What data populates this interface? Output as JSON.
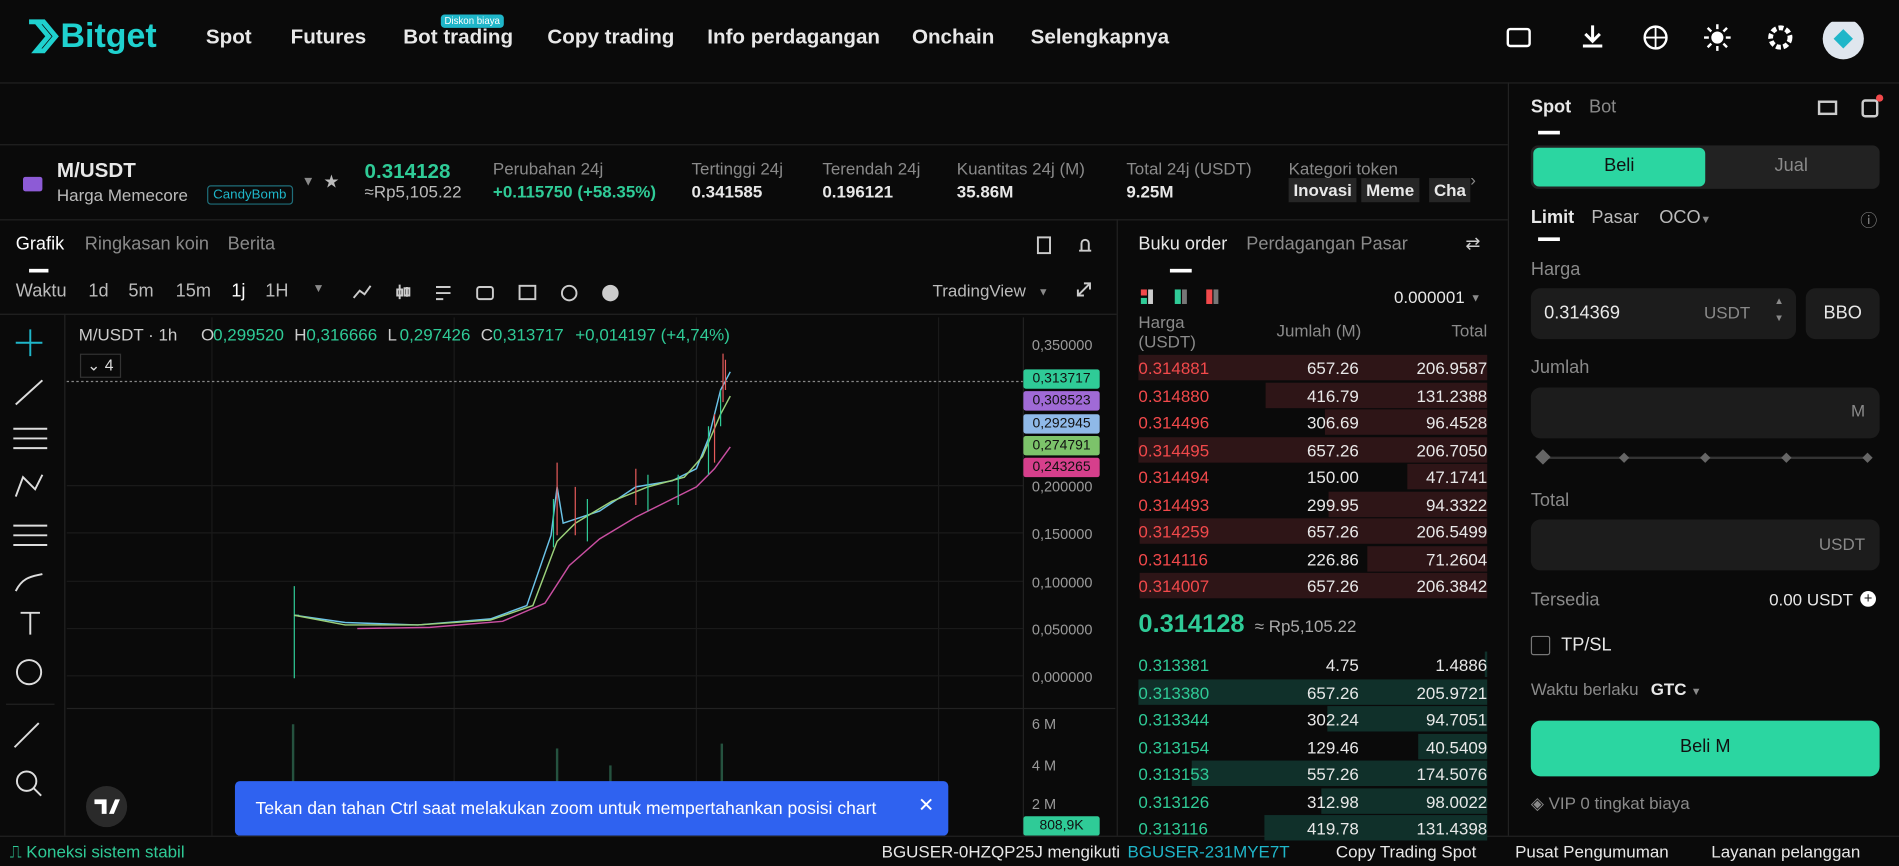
{
  "nav": {
    "brand": "Bitget",
    "items": [
      "Spot",
      "Futures",
      "Bot trading",
      "Copy trading",
      "Info perdagangan",
      "Onchain",
      "Selengkapnya"
    ],
    "badge": "Diskon biaya"
  },
  "ticker": {
    "pair": "M/USDT",
    "name": "Harga Memecore",
    "tag": "CandyBomb",
    "price": "0.314128",
    "price_idr": "≈Rp5,105.22",
    "stats": [
      {
        "label": "Perubahan 24j",
        "value": "+0.115750 (+58.35%)"
      },
      {
        "label": "Tertinggi 24j",
        "value": "0.341585"
      },
      {
        "label": "Terendah 24j",
        "value": "0.196121"
      },
      {
        "label": "Kuantitas 24j (M)",
        "value": "35.86M"
      },
      {
        "label": "Total 24j (USDT)",
        "value": "9.25M"
      }
    ],
    "category_label": "Kategori token",
    "categories": [
      "Inovasi",
      "Meme",
      "Cha"
    ]
  },
  "chart": {
    "tabs": [
      "Grafik",
      "Ringkasan koin",
      "Berita"
    ],
    "timeframes": [
      "Waktu",
      "1d",
      "5m",
      "15m",
      "1j",
      "1H"
    ],
    "provider": "TradingView",
    "symbol": "M/USDT · 1h",
    "ohlc": [
      {
        "key": "O",
        "value": "0,299520"
      },
      {
        "key": "H",
        "value": "0,316666"
      },
      {
        "key": "L",
        "value": "0,297426"
      },
      {
        "key": "C",
        "value": "0,313717"
      }
    ],
    "change": "+0,014197 (+4,74%)",
    "indicators": "4",
    "price_axis": [
      "0,350000",
      "0,200000",
      "0,150000",
      "0,100000",
      "0,050000",
      "0,000000"
    ],
    "price_badges": [
      "0,313717",
      "0,308523",
      "0,292945",
      "0,274791",
      "0,243265"
    ],
    "volume_axis": [
      "6 M",
      "4 M",
      "2 M"
    ],
    "volume_badge": "808,9K",
    "toast": "Tekan dan tahan Ctrl saat melakukan zoom untuk mempertahankan posisi chart"
  },
  "orderbook": {
    "tabs": [
      "Buku order",
      "Perdagangan Pasar"
    ],
    "precision": "0.000001",
    "headers": [
      "Harga (USDT)",
      "Jumlah (M)",
      "Total"
    ],
    "asks": [
      [
        "0.314881",
        "657.26",
        "206.9587"
      ],
      [
        "0.314880",
        "416.79",
        "131.2388"
      ],
      [
        "0.314496",
        "306.69",
        "96.4528"
      ],
      [
        "0.314495",
        "657.26",
        "206.7050"
      ],
      [
        "0.314494",
        "150.00",
        "47.1741"
      ],
      [
        "0.314493",
        "299.95",
        "94.3322"
      ],
      [
        "0.314259",
        "657.26",
        "206.5499"
      ],
      [
        "0.314116",
        "226.86",
        "71.2604"
      ],
      [
        "0.314007",
        "657.26",
        "206.3842"
      ]
    ],
    "mid_price": "0.314128",
    "mid_idr": "≈ Rp5,105.22",
    "bids": [
      [
        "0.313381",
        "4.75",
        "1.4886"
      ],
      [
        "0.313380",
        "657.26",
        "205.9721"
      ],
      [
        "0.313344",
        "302.24",
        "94.7051"
      ],
      [
        "0.313154",
        "129.46",
        "40.5409"
      ],
      [
        "0.313153",
        "557.26",
        "174.5076"
      ],
      [
        "0.313126",
        "312.98",
        "98.0022"
      ],
      [
        "0.313116",
        "419.78",
        "131.4398"
      ]
    ]
  },
  "trade": {
    "tabs": [
      "Spot",
      "Bot"
    ],
    "buy": "Beli",
    "sell": "Jual",
    "order_types": [
      "Limit",
      "Pasar",
      "OCO"
    ],
    "price_label": "Harga",
    "price_value": "0.314369",
    "price_unit": "USDT",
    "bbo": "BBO",
    "amount_label": "Jumlah",
    "amount_unit": "M",
    "total_label": "Total",
    "total_unit": "USDT",
    "available_label": "Tersedia",
    "available_value": "0.00 USDT",
    "tpsl": "TP/SL",
    "validity_label": "Waktu berlaku",
    "validity_value": "GTC",
    "submit": "Beli M",
    "vip": "VIP 0 tingkat biaya"
  },
  "footer": {
    "status": "Koneksi sistem stabil",
    "follow_text": "BGUSER-0HZQP25J mengikuti",
    "follow_user": "BGUSER-231MYE7T",
    "links": [
      "Copy Trading Spot",
      "Pusat Pengumuman",
      "Layanan pelanggan"
    ]
  }
}
